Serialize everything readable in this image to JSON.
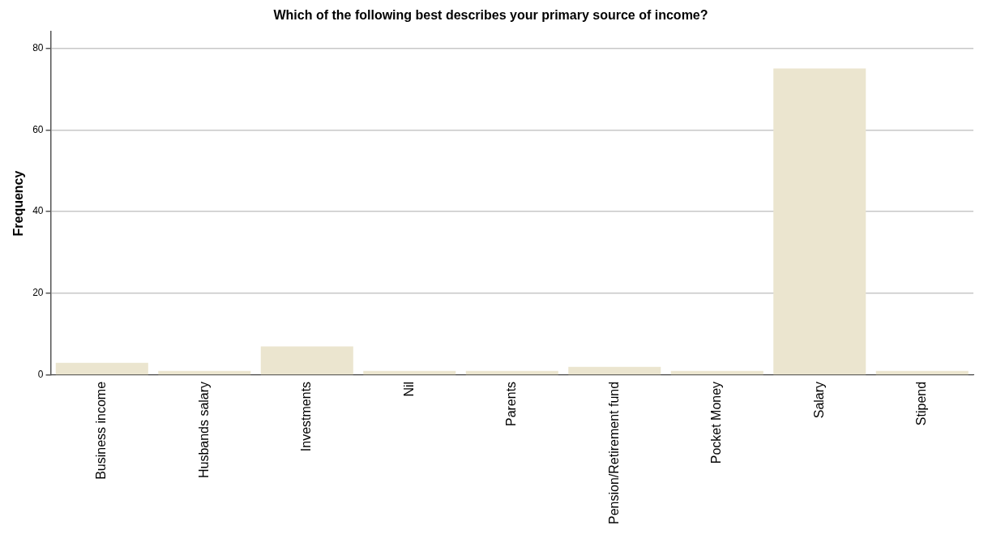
{
  "chart_data": {
    "type": "bar",
    "title": "Which of the following best describes your primary source of income?",
    "ylabel": "Frequency",
    "categories": [
      "Business income",
      "Husbands salary",
      "Investments",
      "Nil",
      "Parents",
      "Pension/Retirement fund",
      "Pocket Money",
      "Salary",
      "Stipend"
    ],
    "values": [
      3,
      1,
      7,
      1,
      1,
      2,
      1,
      75,
      1
    ],
    "color": "#ebe5cf",
    "ylim": [
      0,
      84
    ],
    "yticks": [
      0,
      20,
      40,
      60,
      80
    ],
    "grid": "y",
    "legend": false
  }
}
